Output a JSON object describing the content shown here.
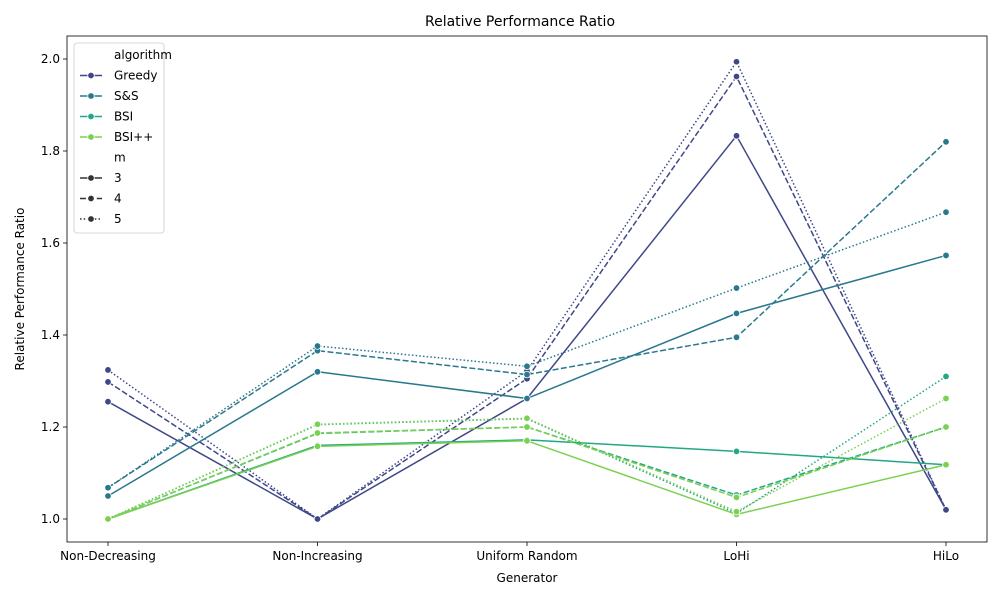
{
  "chart_data": {
    "type": "line",
    "title": "Relative Performance Ratio",
    "xlabel": "Generator",
    "ylabel": "Relative Performance Ratio",
    "categories": [
      "Non-Decreasing",
      "Non-Increasing",
      "Uniform Random",
      "LoHi",
      "HiLo"
    ],
    "ylim": [
      0.95,
      2.05
    ],
    "yticks": [
      1.0,
      1.2,
      1.4,
      1.6,
      1.8,
      2.0
    ],
    "ytick_labels": [
      "1.0",
      "1.2",
      "1.4",
      "1.6",
      "1.8",
      "2.0"
    ],
    "grid": false,
    "legend_placement": "top-left",
    "legend": {
      "hue_title": "algorithm",
      "style_title": "m",
      "algorithms": [
        {
          "name": "Greedy",
          "color": "#3f4788"
        },
        {
          "name": "S&S",
          "color": "#29788e"
        },
        {
          "name": "BSI",
          "color": "#22a884"
        },
        {
          "name": "BSI++",
          "color": "#7ad151"
        }
      ],
      "m_values": [
        {
          "label": "3",
          "dash": "solid"
        },
        {
          "label": "4",
          "dash": "dashed"
        },
        {
          "label": "5",
          "dash": "dotted"
        }
      ]
    },
    "series": [
      {
        "algorithm": "Greedy",
        "m": "3",
        "values": [
          1.255,
          1.0,
          1.262,
          1.833,
          1.02
        ]
      },
      {
        "algorithm": "Greedy",
        "m": "4",
        "values": [
          1.298,
          1.0,
          1.305,
          1.962,
          1.02
        ]
      },
      {
        "algorithm": "Greedy",
        "m": "5",
        "values": [
          1.324,
          1.0,
          1.322,
          1.994,
          1.02
        ]
      },
      {
        "algorithm": "S&S",
        "m": "3",
        "values": [
          1.05,
          1.32,
          1.262,
          1.447,
          1.573
        ]
      },
      {
        "algorithm": "S&S",
        "m": "4",
        "values": [
          1.068,
          1.366,
          1.314,
          1.395,
          1.82
        ]
      },
      {
        "algorithm": "S&S",
        "m": "5",
        "values": [
          1.068,
          1.376,
          1.332,
          1.502,
          1.667
        ]
      },
      {
        "algorithm": "BSI",
        "m": "3",
        "values": [
          1.0,
          1.16,
          1.172,
          1.147,
          1.118
        ]
      },
      {
        "algorithm": "BSI",
        "m": "4",
        "values": [
          1.0,
          1.186,
          1.2,
          1.052,
          1.2
        ]
      },
      {
        "algorithm": "BSI",
        "m": "5",
        "values": [
          1.0,
          1.205,
          1.218,
          1.012,
          1.31
        ]
      },
      {
        "algorithm": "BSI++",
        "m": "3",
        "values": [
          1.0,
          1.158,
          1.17,
          1.01,
          1.118
        ]
      },
      {
        "algorithm": "BSI++",
        "m": "4",
        "values": [
          1.0,
          1.187,
          1.2,
          1.047,
          1.2
        ]
      },
      {
        "algorithm": "BSI++",
        "m": "5",
        "values": [
          1.0,
          1.206,
          1.219,
          1.016,
          1.262
        ]
      }
    ]
  }
}
